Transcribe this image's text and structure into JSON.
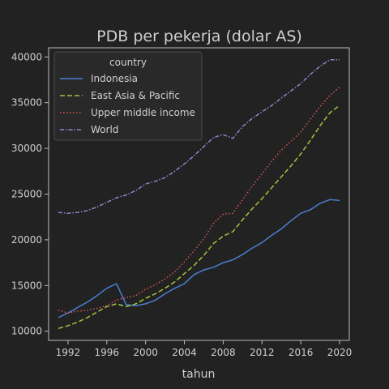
{
  "chart_data": {
    "type": "line",
    "title": "PDB per pekerja (dolar AS)",
    "xlabel": "tahun",
    "ylabel": "",
    "xlim": [
      1990,
      2021
    ],
    "ylim": [
      9000,
      41000
    ],
    "xticks": [
      1992,
      1996,
      2000,
      2004,
      2008,
      2012,
      2016,
      2020
    ],
    "yticks": [
      10000,
      15000,
      20000,
      25000,
      30000,
      35000,
      40000
    ],
    "legend": {
      "title": "country",
      "position": "top-left"
    },
    "x": [
      1991,
      1992,
      1993,
      1994,
      1995,
      1996,
      1997,
      1998,
      1999,
      2000,
      2001,
      2002,
      2003,
      2004,
      2005,
      2006,
      2007,
      2008,
      2009,
      2010,
      2011,
      2012,
      2013,
      2014,
      2015,
      2016,
      2017,
      2018,
      2019,
      2020
    ],
    "series": [
      {
        "name": "Indonesia",
        "color": "#4a7fd4",
        "dash": "solid",
        "values": [
          11500,
          12000,
          12600,
          13200,
          13900,
          14700,
          15200,
          12900,
          12800,
          13000,
          13400,
          14100,
          14700,
          15200,
          16200,
          16700,
          17000,
          17500,
          17800,
          18400,
          19100,
          19700,
          20500,
          21200,
          22100,
          22900,
          23300,
          24000,
          24400,
          24300
        ]
      },
      {
        "name": "East Asia & Pacific",
        "color": "#a4c23c",
        "dash": "dashed",
        "values": [
          10300,
          10600,
          11000,
          11500,
          12100,
          12700,
          13000,
          12700,
          13000,
          13600,
          14100,
          14700,
          15400,
          16300,
          17200,
          18300,
          19600,
          20400,
          20900,
          22200,
          23400,
          24500,
          25700,
          26900,
          28100,
          29400,
          30900,
          32500,
          33900,
          34700
        ]
      },
      {
        "name": "Upper middle income",
        "color": "#d65656",
        "dash": "dotted",
        "values": [
          12300,
          12000,
          12200,
          12300,
          12500,
          12800,
          13400,
          13700,
          13900,
          14600,
          15100,
          15700,
          16500,
          17600,
          18800,
          20100,
          21800,
          22800,
          22900,
          24400,
          25900,
          27200,
          28600,
          29800,
          30800,
          31800,
          33200,
          34600,
          35800,
          36700
        ]
      },
      {
        "name": "World",
        "color": "#8f86c9",
        "dash": "dashdot",
        "values": [
          23000,
          22900,
          23000,
          23200,
          23600,
          24100,
          24600,
          24900,
          25400,
          26100,
          26400,
          26800,
          27500,
          28300,
          29200,
          30200,
          31200,
          31500,
          31100,
          32400,
          33300,
          34000,
          34700,
          35500,
          36300,
          37100,
          38100,
          39000,
          39700,
          39700
        ]
      }
    ]
  }
}
